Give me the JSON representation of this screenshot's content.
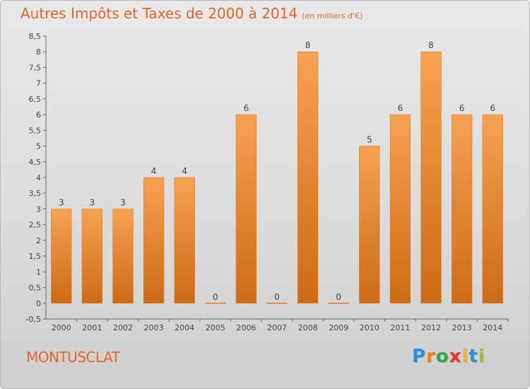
{
  "chart_data": {
    "type": "bar",
    "title": "Autres Impôts et Taxes de 2000 à 2014",
    "subtitle": "(en milliers d'€)",
    "categories": [
      "2000",
      "2001",
      "2002",
      "2003",
      "2004",
      "2005",
      "2006",
      "2007",
      "2008",
      "2009",
      "2010",
      "2011",
      "2012",
      "2013",
      "2014"
    ],
    "values": [
      3,
      3,
      3,
      4,
      4,
      0,
      6,
      0,
      8,
      0,
      5,
      6,
      8,
      6,
      6
    ],
    "data_labels": [
      "3",
      "3",
      "3",
      "4",
      "4",
      "0",
      "6",
      "0",
      "8",
      "0",
      "5",
      "6",
      "8",
      "6",
      "6"
    ],
    "ylim": [
      -0.5,
      8.5
    ],
    "yticks": [
      -0.5,
      0,
      0.5,
      1,
      1.5,
      2,
      2.5,
      3,
      3.5,
      4,
      4.5,
      5,
      5.5,
      6,
      6.5,
      7,
      7.5,
      8,
      8.5
    ],
    "ytick_labels": [
      "-0,5",
      "0",
      "0,5",
      "1",
      "1,5",
      "2",
      "2,5",
      "3",
      "3,5",
      "4",
      "4,5",
      "5",
      "5,5",
      "6",
      "6,5",
      "7",
      "7,5",
      "8",
      "8,5"
    ],
    "xlabel": "",
    "ylabel": "",
    "grid": false,
    "bar_color": "#f0902e"
  },
  "place": "MONTUSCLAT",
  "logo": {
    "letters": [
      "P",
      "r",
      "o",
      "x",
      "i",
      "t",
      "i"
    ],
    "colors": [
      "#2a8fd6",
      "#f07c1c",
      "#2aa84a",
      "#e8302c",
      "#f0b21c",
      "#2a8fd6",
      "#8cc63f"
    ]
  }
}
